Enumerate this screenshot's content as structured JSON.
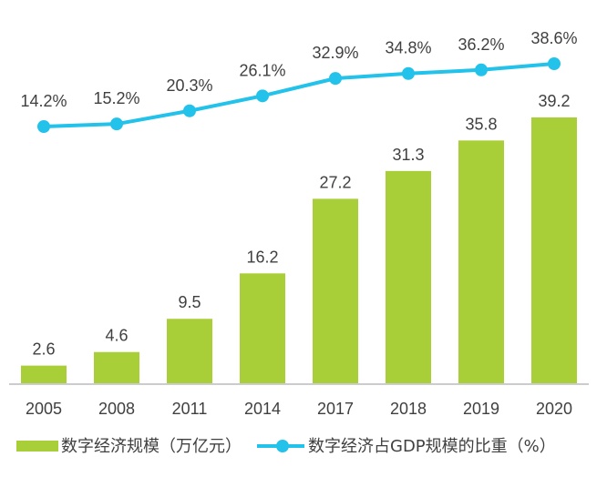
{
  "chart_data": {
    "type": "bar",
    "categories": [
      "2005",
      "2008",
      "2011",
      "2014",
      "2017",
      "2018",
      "2019",
      "2020"
    ],
    "series": [
      {
        "name": "数字经济规模（万亿元）",
        "type": "bar",
        "values": [
          2.6,
          4.6,
          9.5,
          16.2,
          27.2,
          31.3,
          35.8,
          39.2
        ],
        "labels": [
          "2.6",
          "4.6",
          "9.5",
          "16.2",
          "27.2",
          "31.3",
          "35.8",
          "39.2"
        ],
        "color": "#a9cf38"
      },
      {
        "name": "数字经济占GDP规模的比重（%）",
        "type": "line",
        "values": [
          14.2,
          15.2,
          20.3,
          26.1,
          32.9,
          34.8,
          36.2,
          38.6
        ],
        "labels": [
          "14.2%",
          "15.2%",
          "20.3%",
          "26.1%",
          "32.9%",
          "34.8%",
          "36.2%",
          "38.6%"
        ],
        "color": "#22c2ea"
      }
    ],
    "legend": "bottom",
    "grid": false
  },
  "colors": {
    "bar": "#a9cf38",
    "line": "#22c2ea",
    "text": "#404040",
    "axis": "#9a9a9a"
  }
}
